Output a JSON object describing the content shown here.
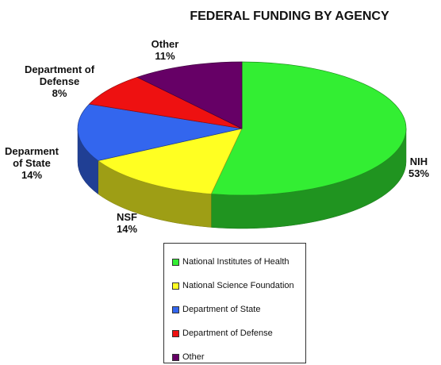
{
  "chart_data": {
    "type": "pie",
    "title": "FEDERAL FUNDING BY AGENCY",
    "categories": [
      "National Institutes of Health",
      "National Science Foundation",
      "Department of State",
      "Department of Defense",
      "Other"
    ],
    "labels": [
      "NIH",
      "NSF",
      "Deparment of State",
      "Department of Defense",
      "Other"
    ],
    "values": [
      53,
      14,
      14,
      8,
      11
    ],
    "value_labels": [
      "53%",
      "14%",
      "14%",
      "8%",
      "11%"
    ],
    "colors": [
      "#33ee33",
      "#ffff22",
      "#3366ee",
      "#ee1111",
      "#660066"
    ],
    "legend": "bottom"
  }
}
